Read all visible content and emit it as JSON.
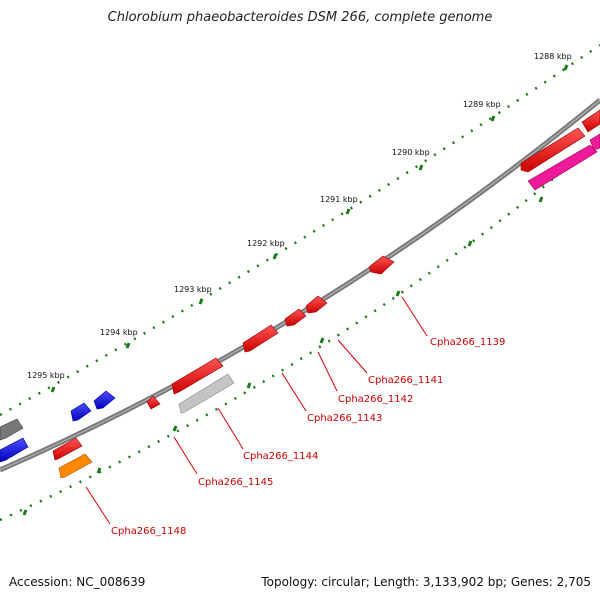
{
  "title": "Chlorobium phaeobacteroides DSM 266, complete genome",
  "footer": {
    "accession": "Accession: NC_008639",
    "stats": "Topology: circular; Length: 3,133,902 bp; Genes: 2,705"
  },
  "ticks": [
    "1288 kbp",
    "1289 kbp",
    "1290 kbp",
    "1291 kbp",
    "1292 kbp",
    "1293 kbp",
    "1294 kbp",
    "1295 kbp"
  ],
  "gene_labels": [
    "Cpha266_1139",
    "Cpha266_1141",
    "Cpha266_1142",
    "Cpha266_1143",
    "Cpha266_1144",
    "Cpha266_1145",
    "Cpha266_1148"
  ],
  "colors": {
    "backbone": "#808080",
    "tick": "#1a7a1a",
    "cds_red": "#ee1111",
    "cds_blue": "#1a1aee",
    "cds_gray": "#bbbbbb",
    "cds_darkgray": "#777777",
    "cds_orange": "#ff8800",
    "cds_magenta": "#ee1a99",
    "label": "#cc0000"
  }
}
